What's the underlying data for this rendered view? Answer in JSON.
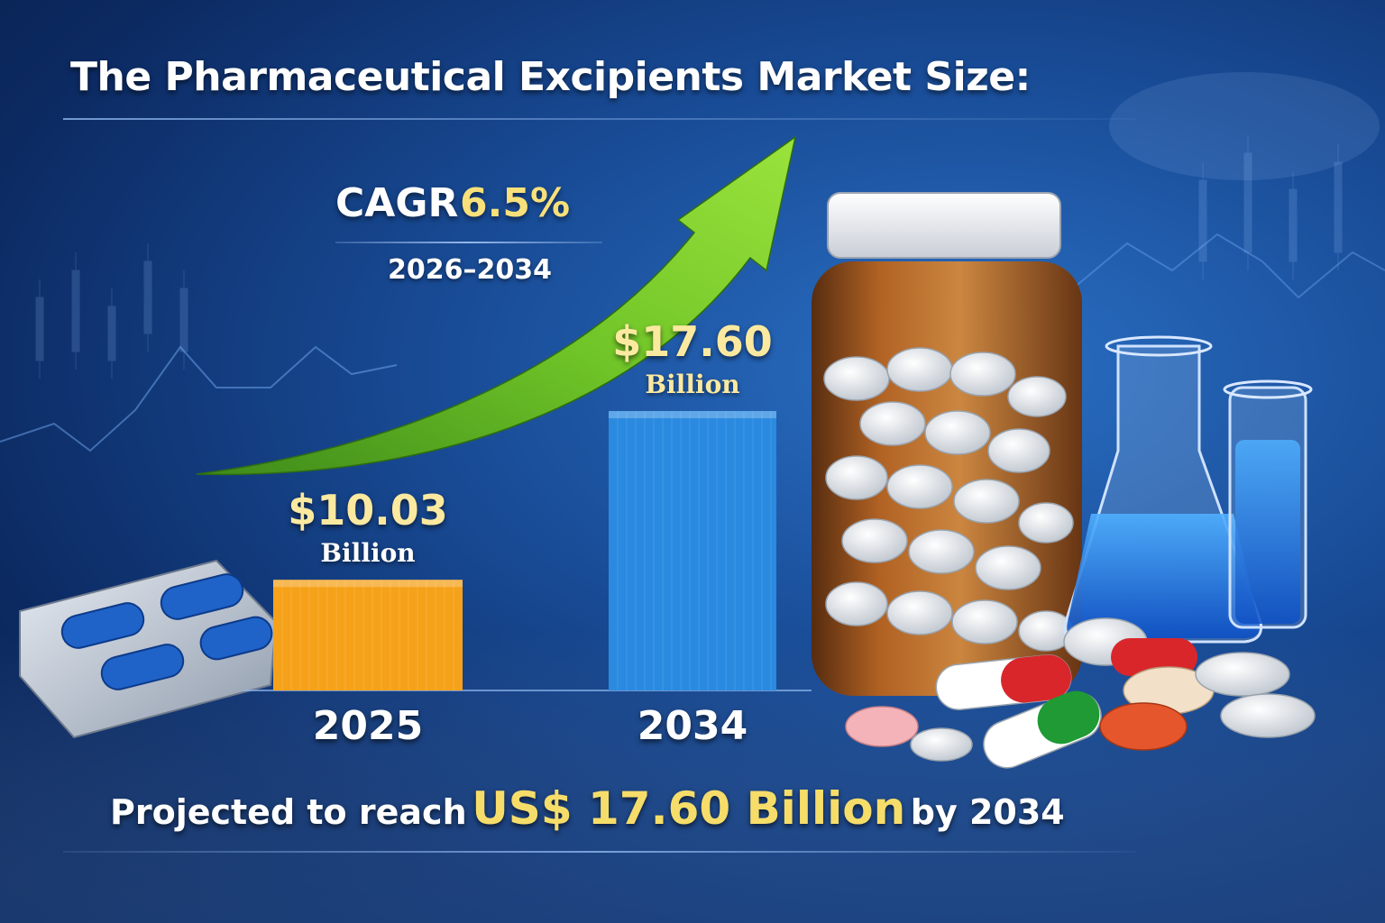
{
  "title": "The Pharmaceutical Excipients Market Size:",
  "cagr": {
    "label": "CAGR",
    "value": "6.5%",
    "period": "2026–2034"
  },
  "footer": {
    "prefix": "Projected to reach",
    "highlight": "US$ 17.60 Billion",
    "suffix": "by 2034"
  },
  "colors": {
    "bar_2025": "#f5a21a",
    "bar_2034": "#2a8ae0",
    "arrow": "#7cd12c",
    "value_text": "#fbe9a0"
  },
  "chart_data": {
    "type": "bar",
    "categories": [
      "2025",
      "2034"
    ],
    "values": [
      10.03,
      17.6
    ],
    "value_labels": [
      "$10.03",
      "$17.60"
    ],
    "unit_label": "Billion",
    "title": "The Pharmaceutical Excipients Market Size:",
    "xlabel": "",
    "ylabel": "",
    "ylim": [
      0,
      25
    ],
    "grid": false,
    "legend": "none"
  },
  "decor": {
    "left_image": "blister-pack-blue-capsules",
    "right_image": "amber-pill-bottle-with-glassware-and-pills",
    "background": "world-map-stock-candlestick-backdrop",
    "arrow": "green-growth-arrow"
  }
}
